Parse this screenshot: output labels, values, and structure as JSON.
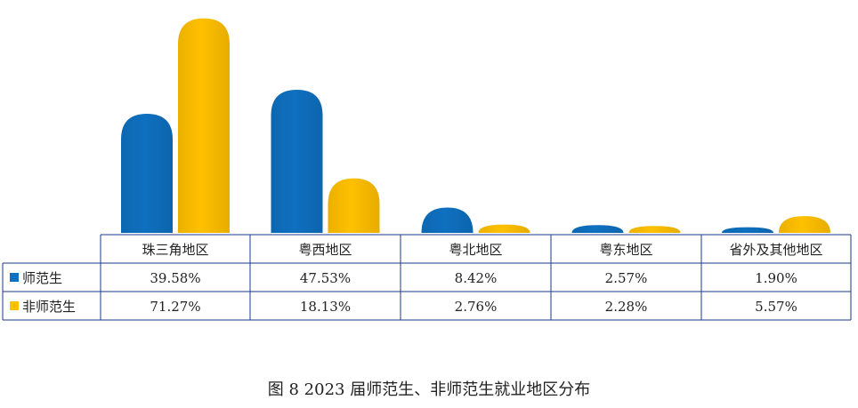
{
  "chart_data": {
    "type": "bar",
    "categories": [
      "珠三角地区",
      "粤西地区",
      "粤北地区",
      "粤东地区",
      "省外及其他地区"
    ],
    "series": [
      {
        "name": "师范生",
        "color": "#0E70C0",
        "values": [
          39.58,
          47.53,
          8.42,
          2.57,
          1.9
        ],
        "labels": [
          "39.58%",
          "47.53%",
          "8.42%",
          "2.57%",
          "1.90%"
        ]
      },
      {
        "name": "非师范生",
        "color": "#FFC000",
        "values": [
          71.27,
          18.13,
          2.76,
          2.28,
          5.57
        ],
        "labels": [
          "71.27%",
          "18.13%",
          "2.76%",
          "2.28%",
          "5.57%"
        ]
      }
    ],
    "ylim": [
      0,
      75
    ],
    "legend": "left, in data table",
    "title": "图 8 2023 届师范生、非师范生就业地区分布"
  }
}
